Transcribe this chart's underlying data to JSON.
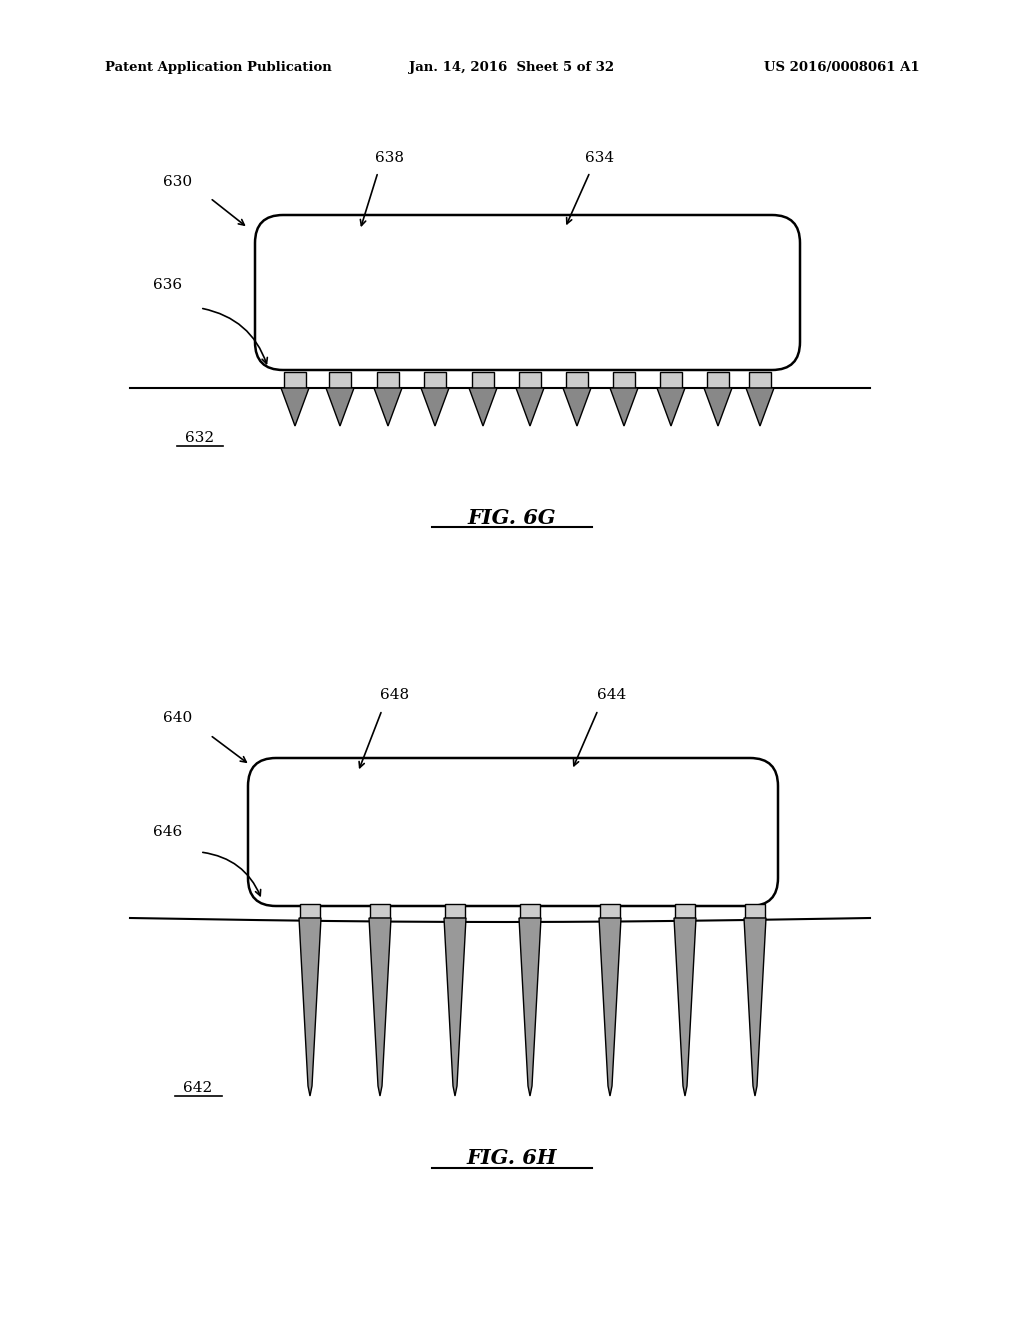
{
  "background_color": "#ffffff",
  "header_left": "Patent Application Publication",
  "header_center": "Jan. 14, 2016  Sheet 5 of 32",
  "header_right": "US 2016/0008061 A1",
  "fig6g_label": "FIG. 6G",
  "fig6h_label": "FIG. 6H",
  "line_color": "#000000",
  "body_lw": 1.8,
  "spike_edge_color": "#000000",
  "spike_fill_6g": "#888888",
  "spike_fill_6h": "#999999",
  "pad_fill_6g": "#cccccc",
  "pad_fill_6h": "#cccccc"
}
